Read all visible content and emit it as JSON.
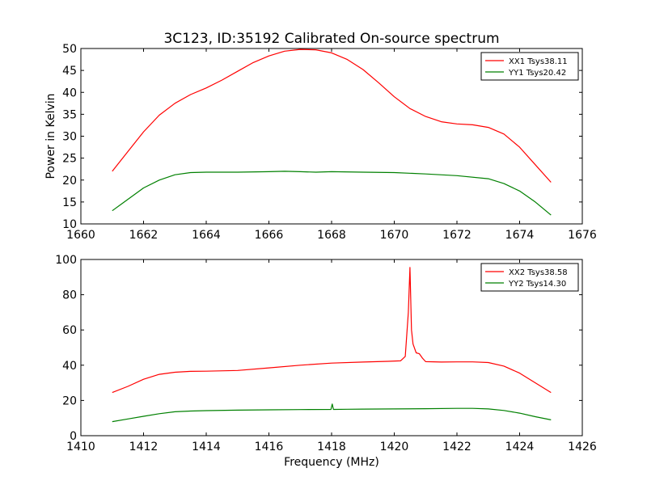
{
  "figure": {
    "title": "3C123, ID:35192 Calibrated On-source spectrum",
    "xlabel": "Frequency (MHz)"
  },
  "chart_data": [
    {
      "type": "line",
      "title": "3C123, ID:35192 Calibrated On-source spectrum",
      "xlabel": "",
      "ylabel": "Power in Kelvin",
      "xlim": [
        1660,
        1676
      ],
      "ylim": [
        10,
        50
      ],
      "xticks": [
        "1660",
        "1662",
        "1664",
        "1666",
        "1668",
        "1670",
        "1672",
        "1674",
        "1676"
      ],
      "yticks": [
        "10",
        "15",
        "20",
        "25",
        "30",
        "35",
        "40",
        "45",
        "50"
      ],
      "legend_position": "top-right",
      "grid": false,
      "series": [
        {
          "name": "XX1 Tsys38.11",
          "color": "#ff0000",
          "x": [
            1661.0,
            1661.5,
            1662.0,
            1662.5,
            1663.0,
            1663.5,
            1664.0,
            1664.5,
            1665.0,
            1665.5,
            1666.0,
            1666.5,
            1667.0,
            1667.5,
            1668.0,
            1668.5,
            1669.0,
            1669.5,
            1670.0,
            1670.5,
            1671.0,
            1671.5,
            1672.0,
            1672.5,
            1673.0,
            1673.5,
            1674.0,
            1674.5,
            1675.0
          ],
          "y": [
            22.0,
            26.5,
            31.0,
            34.8,
            37.5,
            39.5,
            41.0,
            42.8,
            44.8,
            46.8,
            48.3,
            49.4,
            49.8,
            49.7,
            49.0,
            47.5,
            45.2,
            42.2,
            39.0,
            36.3,
            34.5,
            33.3,
            32.8,
            32.6,
            32.0,
            30.5,
            27.5,
            23.5,
            19.5
          ]
        },
        {
          "name": "YY1 Tsys20.42",
          "color": "#008000",
          "x": [
            1661.0,
            1661.5,
            1662.0,
            1662.5,
            1663.0,
            1663.5,
            1664.0,
            1665.0,
            1666.0,
            1666.5,
            1667.0,
            1667.5,
            1668.0,
            1669.0,
            1670.0,
            1671.0,
            1672.0,
            1673.0,
            1673.5,
            1674.0,
            1674.5,
            1675.0
          ],
          "y": [
            13.0,
            15.6,
            18.2,
            20.0,
            21.2,
            21.7,
            21.8,
            21.8,
            21.9,
            22.0,
            21.9,
            21.8,
            21.9,
            21.8,
            21.7,
            21.4,
            21.0,
            20.3,
            19.2,
            17.5,
            15.0,
            12.0
          ]
        }
      ]
    },
    {
      "type": "line",
      "title": "",
      "xlabel": "Frequency (MHz)",
      "ylabel": "",
      "xlim": [
        1410,
        1426
      ],
      "ylim": [
        0,
        100
      ],
      "xticks": [
        "1410",
        "1412",
        "1414",
        "1416",
        "1418",
        "1420",
        "1422",
        "1424",
        "1426"
      ],
      "yticks": [
        "0",
        "20",
        "40",
        "60",
        "80",
        "100"
      ],
      "legend_position": "top-right",
      "grid": false,
      "series": [
        {
          "name": "XX2 Tsys38.58",
          "color": "#ff0000",
          "x": [
            1411.0,
            1411.5,
            1412.0,
            1412.5,
            1413.0,
            1413.5,
            1414.0,
            1415.0,
            1416.0,
            1417.0,
            1418.0,
            1419.0,
            1419.8,
            1420.2,
            1420.35,
            1420.45,
            1420.5,
            1420.55,
            1420.6,
            1420.7,
            1420.8,
            1420.9,
            1421.0,
            1421.5,
            1422.0,
            1422.5,
            1423.0,
            1423.5,
            1424.0,
            1424.5,
            1425.0
          ],
          "y": [
            24.5,
            28.0,
            32.0,
            34.8,
            36.0,
            36.5,
            36.6,
            37.0,
            38.5,
            40.0,
            41.2,
            41.8,
            42.2,
            42.5,
            45.0,
            70.0,
            95.5,
            60.0,
            52.0,
            47.0,
            46.5,
            44.0,
            42.0,
            41.8,
            41.9,
            41.9,
            41.5,
            39.5,
            35.5,
            30.0,
            24.5
          ]
        },
        {
          "name": "YY2 Tsys14.30",
          "color": "#008000",
          "x": [
            1411.0,
            1411.5,
            1412.0,
            1412.5,
            1413.0,
            1413.5,
            1414.0,
            1415.0,
            1416.0,
            1417.0,
            1417.98,
            1418.02,
            1418.06,
            1418.1,
            1418.5,
            1419.0,
            1420.0,
            1421.0,
            1422.0,
            1422.5,
            1423.0,
            1423.5,
            1424.0,
            1424.5,
            1425.0
          ],
          "y": [
            8.0,
            9.5,
            11.0,
            12.5,
            13.6,
            14.0,
            14.2,
            14.5,
            14.7,
            14.8,
            14.9,
            18.0,
            14.9,
            14.9,
            15.0,
            15.1,
            15.2,
            15.3,
            15.5,
            15.5,
            15.2,
            14.3,
            12.8,
            10.8,
            9.0
          ]
        }
      ]
    }
  ]
}
